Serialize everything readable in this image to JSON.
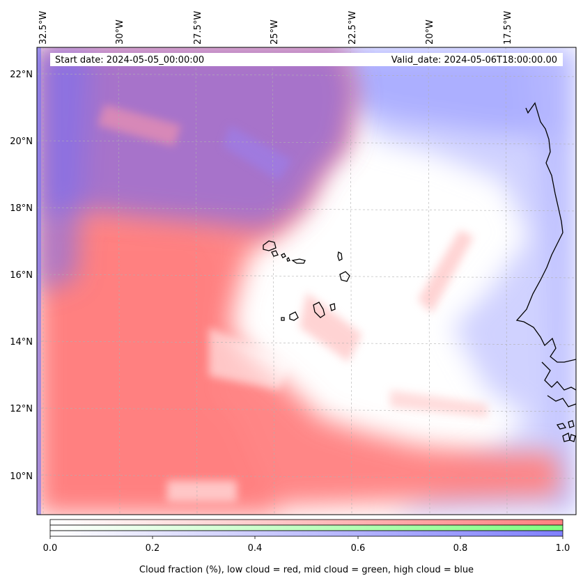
{
  "header": {
    "start_date": "Start date: 2024-05-05_00:00:00",
    "valid_date": "Valid_date: 2024-05-06T18:00:00.00"
  },
  "map": {
    "lon_labels": [
      "32.5°W",
      "30°W",
      "27.5°W",
      "25°W",
      "22.5°W",
      "20°W",
      "17.5°W"
    ],
    "lat_labels": [
      "22°N",
      "20°N",
      "18°N",
      "16°N",
      "14°N",
      "12°N",
      "10°N"
    ],
    "colors": {
      "low_cloud": "#ff8080",
      "mid_cloud": "#80ff80",
      "high_cloud": "#8080ff"
    }
  },
  "colorbar": {
    "ticks": [
      "0.0",
      "0.2",
      "0.4",
      "0.6",
      "0.8",
      "1.0"
    ],
    "label": "Cloud fraction (%), low cloud = red, mid cloud = green, high cloud = blue"
  }
}
